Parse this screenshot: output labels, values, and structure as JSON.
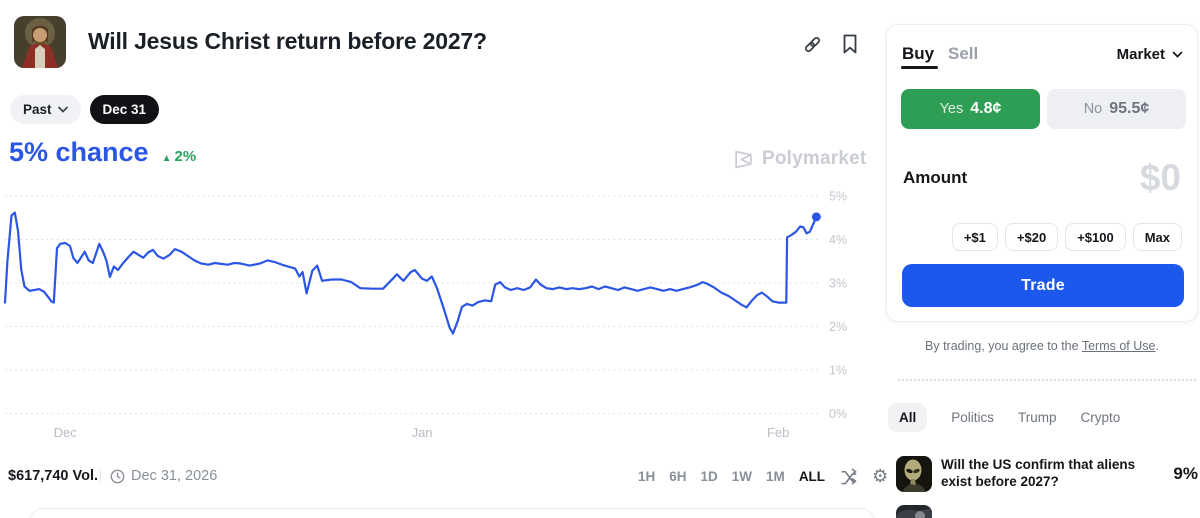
{
  "header": {
    "title": "Will Jesus Christ return before 2027?"
  },
  "filters": {
    "past": "Past",
    "date": "Dec 31"
  },
  "chance": {
    "text": "5% chance",
    "delta": "2%",
    "delta_arrow": "▲"
  },
  "watermark": {
    "label": "Polymarket"
  },
  "chart_data": {
    "type": "line",
    "title": "Will Jesus Christ return before 2027?",
    "ylabel": "chance",
    "unit": "%",
    "ylim": [
      0,
      5.3
    ],
    "grid": "dotted horizontal",
    "line_color": "#2b55e4",
    "yticks": [
      {
        "label": "5%",
        "value": 5
      },
      {
        "label": "4%",
        "value": 4
      },
      {
        "label": "3%",
        "value": 3
      },
      {
        "label": "2%",
        "value": 2
      },
      {
        "label": "1%",
        "value": 1
      },
      {
        "label": "0%",
        "value": 0
      }
    ],
    "xticks": [
      {
        "label": "Dec",
        "f": 0.074
      },
      {
        "label": "Jan",
        "f": 0.513
      },
      {
        "label": "Feb",
        "f": 0.951
      }
    ],
    "end_point": {
      "f": 0.998,
      "value": 4.52
    },
    "points": [
      [
        0.0,
        2.55
      ],
      [
        0.003,
        3.5
      ],
      [
        0.008,
        4.55
      ],
      [
        0.012,
        4.62
      ],
      [
        0.016,
        4.2
      ],
      [
        0.02,
        3.3
      ],
      [
        0.024,
        2.92
      ],
      [
        0.03,
        2.82
      ],
      [
        0.036,
        2.84
      ],
      [
        0.042,
        2.86
      ],
      [
        0.048,
        2.8
      ],
      [
        0.053,
        2.68
      ],
      [
        0.057,
        2.58
      ],
      [
        0.06,
        2.55
      ],
      [
        0.064,
        3.8
      ],
      [
        0.068,
        3.9
      ],
      [
        0.074,
        3.92
      ],
      [
        0.08,
        3.85
      ],
      [
        0.084,
        3.58
      ],
      [
        0.089,
        3.46
      ],
      [
        0.094,
        3.6
      ],
      [
        0.098,
        3.72
      ],
      [
        0.103,
        3.52
      ],
      [
        0.108,
        3.46
      ],
      [
        0.112,
        3.68
      ],
      [
        0.116,
        3.9
      ],
      [
        0.121,
        3.7
      ],
      [
        0.125,
        3.5
      ],
      [
        0.129,
        3.14
      ],
      [
        0.134,
        3.38
      ],
      [
        0.139,
        3.3
      ],
      [
        0.145,
        3.45
      ],
      [
        0.152,
        3.6
      ],
      [
        0.158,
        3.72
      ],
      [
        0.164,
        3.65
      ],
      [
        0.17,
        3.58
      ],
      [
        0.176,
        3.7
      ],
      [
        0.182,
        3.76
      ],
      [
        0.188,
        3.62
      ],
      [
        0.195,
        3.56
      ],
      [
        0.202,
        3.64
      ],
      [
        0.209,
        3.78
      ],
      [
        0.217,
        3.72
      ],
      [
        0.225,
        3.62
      ],
      [
        0.233,
        3.52
      ],
      [
        0.241,
        3.45
      ],
      [
        0.25,
        3.42
      ],
      [
        0.258,
        3.46
      ],
      [
        0.266,
        3.44
      ],
      [
        0.274,
        3.42
      ],
      [
        0.282,
        3.46
      ],
      [
        0.289,
        3.45
      ],
      [
        0.301,
        3.4
      ],
      [
        0.314,
        3.45
      ],
      [
        0.323,
        3.52
      ],
      [
        0.332,
        3.48
      ],
      [
        0.344,
        3.4
      ],
      [
        0.357,
        3.33
      ],
      [
        0.362,
        3.15
      ],
      [
        0.366,
        3.25
      ],
      [
        0.371,
        2.76
      ],
      [
        0.378,
        3.28
      ],
      [
        0.384,
        3.4
      ],
      [
        0.39,
        3.05
      ],
      [
        0.402,
        3.08
      ],
      [
        0.414,
        3.08
      ],
      [
        0.426,
        3.02
      ],
      [
        0.437,
        2.88
      ],
      [
        0.452,
        2.87
      ],
      [
        0.465,
        2.87
      ],
      [
        0.477,
        3.1
      ],
      [
        0.482,
        3.2
      ],
      [
        0.49,
        3.05
      ],
      [
        0.499,
        3.25
      ],
      [
        0.504,
        3.3
      ],
      [
        0.513,
        3.1
      ],
      [
        0.519,
        3.05
      ],
      [
        0.525,
        3.15
      ],
      [
        0.531,
        2.9
      ],
      [
        0.539,
        2.45
      ],
      [
        0.547,
        1.97
      ],
      [
        0.551,
        1.84
      ],
      [
        0.557,
        2.13
      ],
      [
        0.562,
        2.45
      ],
      [
        0.568,
        2.52
      ],
      [
        0.575,
        2.48
      ],
      [
        0.582,
        2.56
      ],
      [
        0.59,
        2.6
      ],
      [
        0.598,
        2.58
      ],
      [
        0.603,
        2.96
      ],
      [
        0.609,
        3.02
      ],
      [
        0.615,
        2.9
      ],
      [
        0.622,
        2.84
      ],
      [
        0.63,
        2.88
      ],
      [
        0.638,
        2.84
      ],
      [
        0.646,
        2.9
      ],
      [
        0.653,
        3.08
      ],
      [
        0.659,
        2.96
      ],
      [
        0.666,
        2.88
      ],
      [
        0.674,
        2.86
      ],
      [
        0.682,
        2.9
      ],
      [
        0.69,
        2.86
      ],
      [
        0.698,
        2.88
      ],
      [
        0.706,
        2.86
      ],
      [
        0.714,
        2.88
      ],
      [
        0.722,
        2.92
      ],
      [
        0.73,
        2.86
      ],
      [
        0.738,
        2.92
      ],
      [
        0.746,
        2.88
      ],
      [
        0.754,
        2.84
      ],
      [
        0.762,
        2.9
      ],
      [
        0.77,
        2.86
      ],
      [
        0.778,
        2.82
      ],
      [
        0.786,
        2.86
      ],
      [
        0.794,
        2.9
      ],
      [
        0.802,
        2.86
      ],
      [
        0.81,
        2.82
      ],
      [
        0.818,
        2.86
      ],
      [
        0.826,
        2.82
      ],
      [
        0.834,
        2.86
      ],
      [
        0.842,
        2.9
      ],
      [
        0.852,
        2.96
      ],
      [
        0.858,
        3.02
      ],
      [
        0.864,
        2.98
      ],
      [
        0.872,
        2.9
      ],
      [
        0.881,
        2.78
      ],
      [
        0.89,
        2.7
      ],
      [
        0.898,
        2.6
      ],
      [
        0.906,
        2.5
      ],
      [
        0.912,
        2.44
      ],
      [
        0.918,
        2.58
      ],
      [
        0.925,
        2.72
      ],
      [
        0.931,
        2.78
      ],
      [
        0.938,
        2.68
      ],
      [
        0.944,
        2.58
      ],
      [
        0.951,
        2.55
      ],
      [
        0.961,
        2.55
      ],
      [
        0.962,
        4.05
      ],
      [
        0.967,
        4.1
      ],
      [
        0.973,
        4.18
      ],
      [
        0.978,
        4.3
      ],
      [
        0.982,
        4.28
      ],
      [
        0.986,
        4.14
      ],
      [
        0.99,
        4.18
      ],
      [
        0.994,
        4.35
      ],
      [
        0.998,
        4.52
      ]
    ]
  },
  "footer": {
    "volume": "$617,740 Vol.",
    "resolution_date": "Dec 31, 2026",
    "ranges": [
      "1H",
      "6H",
      "1D",
      "1W",
      "1M",
      "ALL"
    ],
    "active_range": "ALL"
  },
  "trade_panel": {
    "buy_tab": "Buy",
    "sell_tab": "Sell",
    "order_type": "Market",
    "yes_label": "Yes",
    "yes_price": "4.8¢",
    "no_label": "No",
    "no_price": "95.5¢",
    "amount_label": "Amount",
    "amount_value": "$0",
    "quick_amounts": [
      "+$1",
      "+$20",
      "+$100",
      "Max"
    ],
    "trade_button": "Trade",
    "terms_prefix": "By trading, you agree to the ",
    "terms_link": "Terms of Use",
    "terms_suffix": "."
  },
  "related": {
    "tabs": [
      "All",
      "Politics",
      "Trump",
      "Crypto"
    ],
    "active_tab": "All",
    "items": [
      {
        "title": "Will the US confirm that aliens exist before 2027?",
        "chance": "9%"
      }
    ]
  },
  "colors": {
    "accent_blue": "#2b55e4",
    "trade_blue": "#1d58ec",
    "yes_green": "#2e9e54",
    "delta_green": "#28a45c",
    "no_gray": "#edeff2",
    "axis_label_gray": "#c3c7cd"
  }
}
